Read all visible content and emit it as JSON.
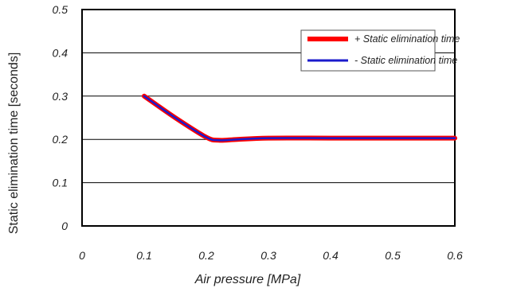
{
  "chart_data": {
    "type": "line",
    "xlabel": "Air pressure [MPa]",
    "ylabel": "Static elimination time [seconds]",
    "xlim": [
      0,
      0.6
    ],
    "ylim": [
      0,
      0.5
    ],
    "x_ticks": [
      "0",
      "0.1",
      "0.2",
      "0.3",
      "0.4",
      "0.5",
      "0.6"
    ],
    "y_ticks": [
      "0",
      "0.1",
      "0.2",
      "0.3",
      "0.4",
      "0.5"
    ],
    "grid": "horizontal",
    "legend_position": "top-right",
    "series": [
      {
        "name": "+ Static elimination time",
        "color": "#ff0000",
        "x": [
          0.1,
          0.15,
          0.2,
          0.22,
          0.25,
          0.3,
          0.4,
          0.5,
          0.6
        ],
        "y": [
          0.3,
          0.25,
          0.205,
          0.198,
          0.2,
          0.203,
          0.203,
          0.203,
          0.203
        ]
      },
      {
        "name": "- Static elimination time",
        "color": "#1a1acc",
        "x": [
          0.1,
          0.15,
          0.2,
          0.22,
          0.25,
          0.3,
          0.4,
          0.5,
          0.6
        ],
        "y": [
          0.3,
          0.25,
          0.205,
          0.198,
          0.2,
          0.203,
          0.203,
          0.203,
          0.203
        ]
      }
    ]
  }
}
